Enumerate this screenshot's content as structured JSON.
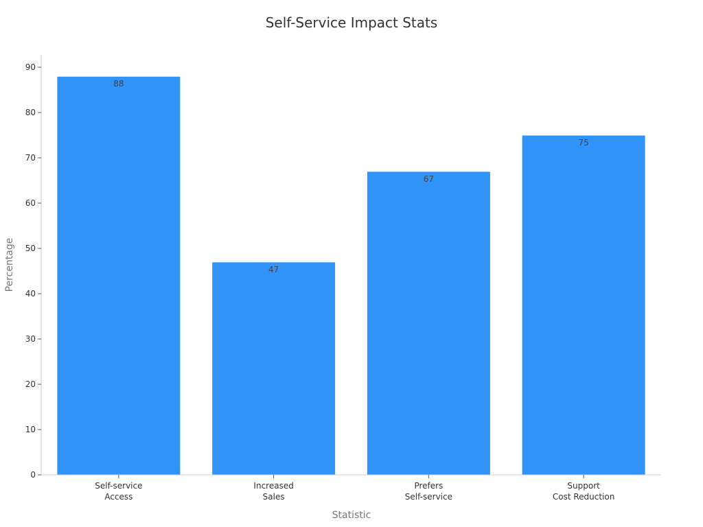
{
  "chart_data": {
    "type": "bar",
    "title": "Self-Service Impact Stats",
    "xlabel": "Statistic",
    "ylabel": "Percentage",
    "categories": [
      [
        "Self-service",
        "Access"
      ],
      [
        "Increased",
        "Sales"
      ],
      [
        "Prefers",
        "Self-service"
      ],
      [
        "Support",
        "Cost Reduction"
      ]
    ],
    "values": [
      88,
      47,
      67,
      75
    ],
    "ylim": [
      0,
      92
    ],
    "yticks": [
      0,
      10,
      20,
      30,
      40,
      50,
      60,
      70,
      80,
      90
    ],
    "bar_color": "#3093f8",
    "grid": false,
    "legend": "none"
  }
}
